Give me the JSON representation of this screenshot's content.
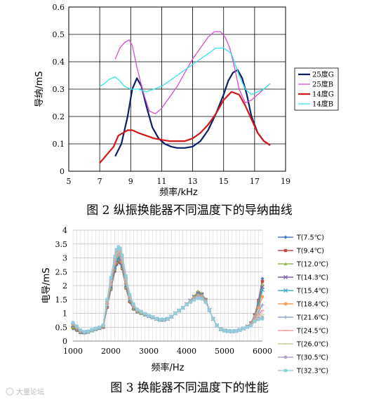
{
  "chart_data": [
    {
      "type": "line",
      "title": "",
      "caption": "图 2 纵振换能器不同温度下的导纳曲线",
      "xlabel": "频率/kHz",
      "ylabel": "导纳/mS",
      "xlim": [
        5,
        19
      ],
      "ylim": [
        0,
        0.6
      ],
      "xticks": [
        5,
        7,
        9,
        11,
        13,
        15,
        17,
        19
      ],
      "yticks": [
        0,
        0.1,
        0.2,
        0.3,
        0.4,
        0.5,
        0.6
      ],
      "grid": true,
      "legend_position": "right",
      "series": [
        {
          "name": "25度G",
          "color": "#0a1f6e",
          "x": [
            8.0,
            8.4,
            8.8,
            9.1,
            9.4,
            9.7,
            10.0,
            10.4,
            10.8,
            11.2,
            11.6,
            12.0,
            12.5,
            13.0,
            13.5,
            14.0,
            14.5,
            15.0,
            15.3,
            15.6,
            15.9,
            16.2,
            16.5,
            16.8,
            17.2,
            17.6,
            18.0
          ],
          "y": [
            0.055,
            0.1,
            0.2,
            0.3,
            0.34,
            0.31,
            0.24,
            0.16,
            0.12,
            0.1,
            0.09,
            0.085,
            0.085,
            0.09,
            0.11,
            0.15,
            0.21,
            0.28,
            0.33,
            0.36,
            0.37,
            0.34,
            0.28,
            0.2,
            0.14,
            0.11,
            0.095
          ]
        },
        {
          "name": "25度B",
          "color": "#d84bd4",
          "x": [
            8.0,
            8.3,
            8.6,
            8.9,
            9.1,
            9.4,
            9.8,
            10.2,
            10.6,
            11.0,
            11.5,
            12.0,
            12.5,
            13.0,
            13.5,
            14.0,
            14.4,
            14.8,
            15.1,
            15.4,
            15.7,
            16.0,
            16.4,
            16.8,
            17.2,
            17.6,
            18.0
          ],
          "y": [
            0.41,
            0.45,
            0.47,
            0.48,
            0.46,
            0.38,
            0.29,
            0.22,
            0.21,
            0.23,
            0.27,
            0.31,
            0.36,
            0.41,
            0.45,
            0.49,
            0.51,
            0.51,
            0.49,
            0.45,
            0.38,
            0.3,
            0.25,
            0.26,
            0.28,
            0.3,
            0.32
          ]
        },
        {
          "name": "14度G",
          "color": "#d01818",
          "x": [
            7.0,
            7.3,
            7.6,
            7.9,
            8.2,
            8.5,
            8.8,
            9.1,
            9.5,
            10.0,
            10.5,
            11.0,
            11.5,
            12.0,
            12.5,
            13.0,
            13.5,
            14.0,
            14.5,
            15.0,
            15.5,
            16.0,
            16.4,
            16.8,
            17.2,
            17.6,
            18.0
          ],
          "y": [
            0.03,
            0.05,
            0.07,
            0.09,
            0.13,
            0.14,
            0.15,
            0.15,
            0.14,
            0.13,
            0.12,
            0.115,
            0.11,
            0.11,
            0.11,
            0.12,
            0.14,
            0.17,
            0.21,
            0.26,
            0.29,
            0.28,
            0.24,
            0.19,
            0.14,
            0.11,
            0.095
          ]
        },
        {
          "name": "14度B",
          "color": "#35e3ec",
          "x": [
            7.0,
            7.3,
            7.6,
            8.0,
            8.3,
            8.6,
            9.0,
            9.5,
            10.0,
            10.5,
            11.0,
            11.5,
            12.0,
            12.5,
            13.0,
            13.5,
            14.0,
            14.5,
            15.0,
            15.5,
            16.0,
            16.4,
            16.8,
            17.2,
            17.6,
            18.0
          ],
          "y": [
            0.31,
            0.32,
            0.335,
            0.345,
            0.33,
            0.31,
            0.3,
            0.3,
            0.29,
            0.3,
            0.31,
            0.33,
            0.35,
            0.37,
            0.39,
            0.41,
            0.43,
            0.45,
            0.45,
            0.43,
            0.35,
            0.3,
            0.28,
            0.29,
            0.3,
            0.32
          ]
        }
      ]
    },
    {
      "type": "line",
      "title": "",
      "caption": "图 3 换能器不同温度下的性能",
      "xlabel": "频率/Hz",
      "ylabel": "电导/mS",
      "xlim": [
        1000,
        6000
      ],
      "ylim": [
        0,
        4
      ],
      "xticks": [
        1000,
        2000,
        3000,
        4000,
        5000,
        6000
      ],
      "yticks": [
        0,
        0.5,
        1,
        1.5,
        2,
        2.5,
        3,
        3.5,
        4
      ],
      "grid": true,
      "legend_position": "right",
      "x": [
        1000,
        1100,
        1200,
        1300,
        1400,
        1500,
        1600,
        1700,
        1800,
        1900,
        2000,
        2100,
        2150,
        2200,
        2250,
        2300,
        2400,
        2500,
        2600,
        2700,
        2800,
        2900,
        3000,
        3100,
        3200,
        3300,
        3400,
        3500,
        3600,
        3700,
        3800,
        3900,
        4000,
        4100,
        4200,
        4300,
        4400,
        4500,
        4600,
        4700,
        4800,
        4900,
        5000,
        5100,
        5200,
        5300,
        5400,
        5500,
        5600,
        5700,
        5800,
        5900,
        6000
      ],
      "series": [
        {
          "name": "T(7.5℃)",
          "color": "#4a7ebb",
          "marker": "diamond",
          "values": [
            0.45,
            0.38,
            0.3,
            0.3,
            0.33,
            0.38,
            0.42,
            0.46,
            0.5,
            1.2,
            1.85,
            2.5,
            2.75,
            2.85,
            2.8,
            2.6,
            1.9,
            1.4,
            1.15,
            1.05,
            1.0,
            0.95,
            0.9,
            0.85,
            0.8,
            0.76,
            0.76,
            0.8,
            0.88,
            1.0,
            1.1,
            1.2,
            1.32,
            1.45,
            1.58,
            1.7,
            1.65,
            1.45,
            1.1,
            0.8,
            0.55,
            0.42,
            0.38,
            0.36,
            0.35,
            0.36,
            0.4,
            0.45,
            0.52,
            0.65,
            0.95,
            1.5,
            2.25
          ]
        },
        {
          "name": "T(9.4℃)",
          "color": "#be4b48",
          "marker": "square",
          "values": [
            0.48,
            0.4,
            0.31,
            0.3,
            0.33,
            0.38,
            0.42,
            0.46,
            0.5,
            1.22,
            1.88,
            2.55,
            2.8,
            2.9,
            2.85,
            2.62,
            1.92,
            1.42,
            1.16,
            1.05,
            1.0,
            0.95,
            0.9,
            0.85,
            0.8,
            0.76,
            0.76,
            0.8,
            0.88,
            1.0,
            1.1,
            1.2,
            1.32,
            1.45,
            1.6,
            1.75,
            1.7,
            1.5,
            1.12,
            0.8,
            0.55,
            0.42,
            0.38,
            0.36,
            0.35,
            0.36,
            0.4,
            0.45,
            0.52,
            0.65,
            0.95,
            1.45,
            2.15
          ]
        },
        {
          "name": "T(12.0℃)",
          "color": "#98b954",
          "marker": "triangle",
          "values": [
            0.5,
            0.42,
            0.32,
            0.3,
            0.33,
            0.38,
            0.42,
            0.47,
            0.52,
            1.25,
            1.9,
            2.6,
            2.85,
            2.95,
            2.9,
            2.65,
            1.95,
            1.45,
            1.18,
            1.06,
            1.0,
            0.95,
            0.9,
            0.85,
            0.8,
            0.76,
            0.76,
            0.8,
            0.88,
            1.0,
            1.1,
            1.2,
            1.33,
            1.46,
            1.62,
            1.8,
            1.72,
            1.5,
            1.12,
            0.8,
            0.55,
            0.42,
            0.38,
            0.36,
            0.35,
            0.36,
            0.4,
            0.45,
            0.52,
            0.65,
            0.95,
            1.4,
            2.05
          ]
        },
        {
          "name": "T(14.3℃)",
          "color": "#7d60a0",
          "marker": "x",
          "values": [
            0.55,
            0.44,
            0.33,
            0.31,
            0.33,
            0.38,
            0.43,
            0.47,
            0.52,
            1.28,
            1.95,
            2.65,
            2.9,
            3.0,
            2.95,
            2.7,
            2.0,
            1.48,
            1.2,
            1.08,
            1.02,
            0.96,
            0.9,
            0.86,
            0.8,
            0.77,
            0.77,
            0.8,
            0.88,
            1.0,
            1.1,
            1.2,
            1.33,
            1.46,
            1.6,
            1.72,
            1.68,
            1.48,
            1.12,
            0.8,
            0.56,
            0.43,
            0.38,
            0.36,
            0.35,
            0.36,
            0.4,
            0.45,
            0.52,
            0.64,
            0.92,
            1.35,
            1.95
          ]
        },
        {
          "name": "T(15.4℃)",
          "color": "#46aac5",
          "marker": "x",
          "values": [
            0.58,
            0.46,
            0.34,
            0.31,
            0.33,
            0.38,
            0.43,
            0.47,
            0.53,
            1.3,
            2.0,
            2.7,
            2.95,
            3.05,
            3.0,
            2.75,
            2.02,
            1.5,
            1.21,
            1.08,
            1.02,
            0.96,
            0.9,
            0.86,
            0.8,
            0.77,
            0.77,
            0.8,
            0.88,
            1.0,
            1.1,
            1.2,
            1.33,
            1.46,
            1.58,
            1.68,
            1.65,
            1.46,
            1.12,
            0.8,
            0.56,
            0.43,
            0.38,
            0.36,
            0.35,
            0.36,
            0.4,
            0.45,
            0.52,
            0.63,
            0.9,
            1.3,
            1.85
          ]
        },
        {
          "name": "T(18.4℃)",
          "color": "#f59d56",
          "marker": "circle",
          "values": [
            0.6,
            0.48,
            0.35,
            0.31,
            0.34,
            0.39,
            0.44,
            0.48,
            0.54,
            1.35,
            2.05,
            2.8,
            3.05,
            3.15,
            3.1,
            2.85,
            2.1,
            1.55,
            1.24,
            1.1,
            1.03,
            0.97,
            0.9,
            0.86,
            0.8,
            0.77,
            0.77,
            0.8,
            0.88,
            1.0,
            1.1,
            1.2,
            1.33,
            1.45,
            1.56,
            1.65,
            1.62,
            1.45,
            1.12,
            0.8,
            0.56,
            0.43,
            0.38,
            0.36,
            0.35,
            0.36,
            0.4,
            0.45,
            0.52,
            0.62,
            0.88,
            1.2,
            1.6
          ]
        },
        {
          "name": "T(21.6℃)",
          "color": "#92a9d0",
          "marker": "plus",
          "values": [
            0.62,
            0.5,
            0.36,
            0.32,
            0.34,
            0.39,
            0.44,
            0.48,
            0.55,
            1.4,
            2.1,
            2.85,
            3.1,
            3.2,
            3.15,
            2.9,
            2.15,
            1.58,
            1.26,
            1.11,
            1.04,
            0.97,
            0.9,
            0.86,
            0.8,
            0.77,
            0.77,
            0.8,
            0.88,
            1.0,
            1.1,
            1.2,
            1.32,
            1.44,
            1.54,
            1.62,
            1.6,
            1.44,
            1.12,
            0.8,
            0.56,
            0.43,
            0.38,
            0.36,
            0.35,
            0.36,
            0.4,
            0.45,
            0.51,
            0.6,
            0.82,
            1.05,
            1.3
          ]
        },
        {
          "name": "T(24.5℃)",
          "color": "#ec9d9b",
          "marker": "dash",
          "values": [
            0.64,
            0.51,
            0.37,
            0.32,
            0.34,
            0.39,
            0.44,
            0.49,
            0.56,
            1.42,
            2.15,
            2.9,
            3.15,
            3.25,
            3.2,
            2.95,
            2.2,
            1.6,
            1.28,
            1.12,
            1.05,
            0.98,
            0.91,
            0.86,
            0.8,
            0.77,
            0.77,
            0.8,
            0.88,
            1.0,
            1.1,
            1.2,
            1.32,
            1.43,
            1.52,
            1.6,
            1.58,
            1.43,
            1.12,
            0.8,
            0.56,
            0.43,
            0.38,
            0.36,
            0.35,
            0.36,
            0.4,
            0.45,
            0.51,
            0.58,
            0.78,
            0.95,
            1.1
          ]
        },
        {
          "name": "T(26.0℃)",
          "color": "#c3d69b",
          "marker": "dash",
          "values": [
            0.65,
            0.52,
            0.38,
            0.33,
            0.35,
            0.4,
            0.45,
            0.49,
            0.57,
            1.45,
            2.2,
            2.95,
            3.2,
            3.3,
            3.25,
            3.0,
            2.25,
            1.62,
            1.3,
            1.13,
            1.05,
            0.98,
            0.91,
            0.86,
            0.8,
            0.77,
            0.77,
            0.8,
            0.88,
            1.0,
            1.1,
            1.2,
            1.32,
            1.42,
            1.51,
            1.58,
            1.56,
            1.42,
            1.12,
            0.8,
            0.56,
            0.43,
            0.38,
            0.36,
            0.35,
            0.36,
            0.4,
            0.45,
            0.51,
            0.57,
            0.74,
            0.88,
            0.95
          ]
        },
        {
          "name": "T(30.5℃)",
          "color": "#b2a2c7",
          "marker": "circle",
          "values": [
            0.66,
            0.53,
            0.39,
            0.33,
            0.35,
            0.4,
            0.45,
            0.5,
            0.58,
            1.48,
            2.25,
            3.0,
            3.25,
            3.35,
            3.3,
            3.05,
            2.3,
            1.65,
            1.32,
            1.14,
            1.06,
            0.98,
            0.91,
            0.86,
            0.8,
            0.77,
            0.77,
            0.8,
            0.88,
            1.0,
            1.1,
            1.2,
            1.31,
            1.41,
            1.5,
            1.56,
            1.55,
            1.41,
            1.12,
            0.8,
            0.56,
            0.43,
            0.38,
            0.36,
            0.35,
            0.36,
            0.4,
            0.45,
            0.51,
            0.56,
            0.72,
            0.82,
            0.85
          ]
        },
        {
          "name": "T(32.3℃)",
          "color": "#93cddd",
          "marker": "square",
          "values": [
            0.67,
            0.54,
            0.4,
            0.34,
            0.36,
            0.41,
            0.46,
            0.5,
            0.58,
            1.5,
            2.3,
            3.05,
            3.3,
            3.4,
            3.35,
            3.1,
            2.35,
            1.68,
            1.34,
            1.15,
            1.07,
            0.99,
            0.92,
            0.87,
            0.81,
            0.78,
            0.78,
            0.81,
            0.89,
            1.0,
            1.1,
            1.2,
            1.31,
            1.4,
            1.48,
            1.54,
            1.52,
            1.4,
            1.12,
            0.8,
            0.56,
            0.43,
            0.38,
            0.36,
            0.35,
            0.36,
            0.4,
            0.45,
            0.5,
            0.55,
            0.7,
            0.78,
            0.8
          ]
        }
      ]
    }
  ],
  "watermark": "大量论坛"
}
